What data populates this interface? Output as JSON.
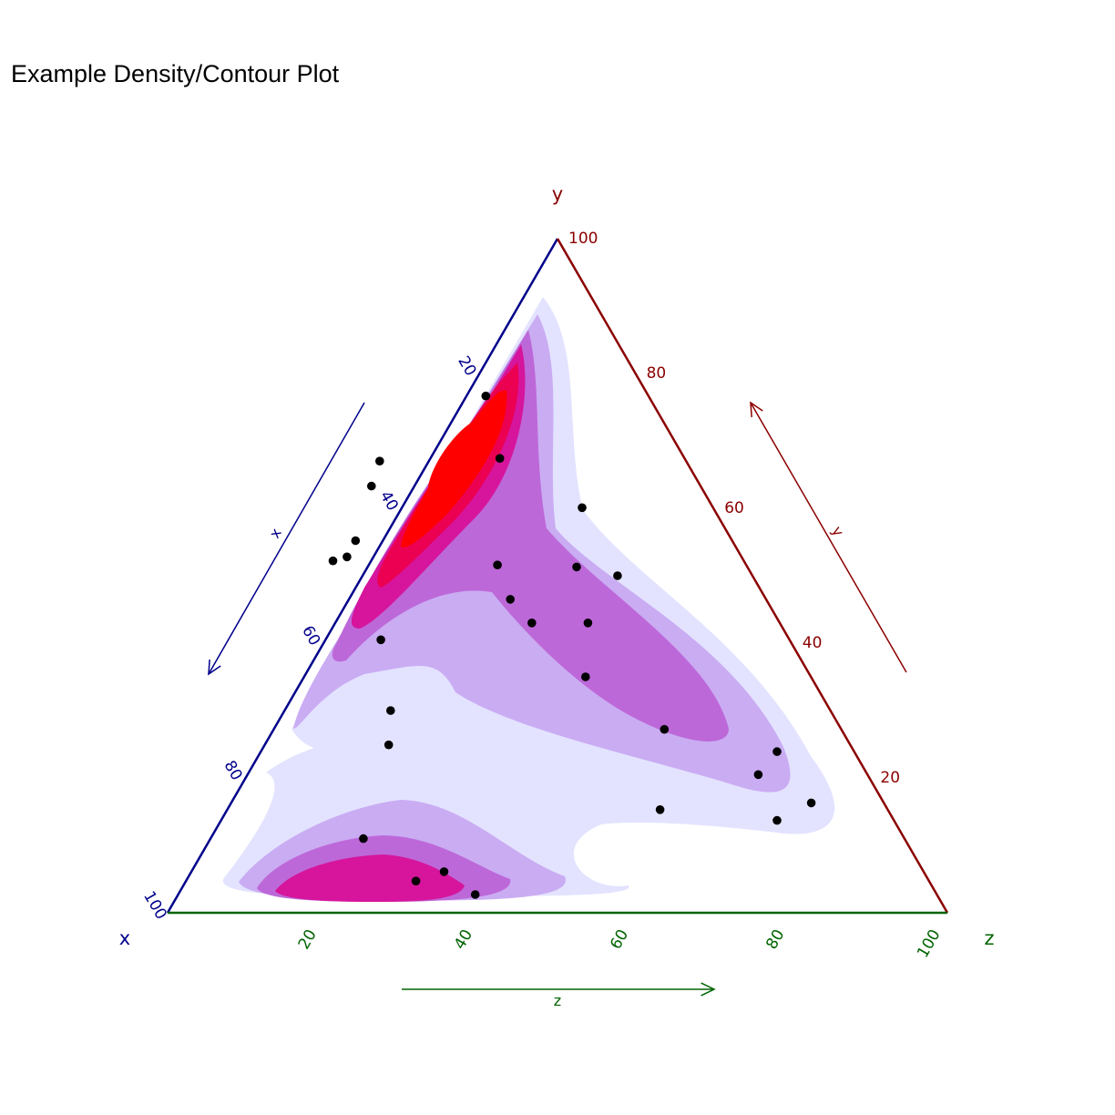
{
  "chart_data": {
    "type": "scatter",
    "subtype": "ternary-density-contour",
    "title": "Example Density/Contour Plot",
    "axes": {
      "x": {
        "name": "x",
        "color": "#00008B",
        "arrow_label": "x",
        "ticks": [
          "20",
          "40",
          "60",
          "80",
          "100"
        ]
      },
      "y": {
        "name": "y",
        "color": "#8B0000",
        "arrow_label": "y",
        "ticks": [
          "20",
          "40",
          "60",
          "80",
          "100"
        ]
      },
      "z": {
        "name": "z",
        "color": "#006400",
        "arrow_label": "z",
        "ticks": [
          "20",
          "40",
          "60",
          "80",
          "100"
        ]
      }
    },
    "tick_values": [
      20,
      40,
      60,
      80,
      100
    ],
    "contour_colors": [
      "#E3E3FF",
      "#CAACF3",
      "#BD68D8",
      "#D6159C",
      "#EB0052",
      "#FF0000"
    ],
    "points": [
      {
        "x": 21.9,
        "y": 80.5,
        "z": 2.6
      },
      {
        "x": 23.7,
        "y": 67.4,
        "z": 8.9
      },
      {
        "x": 16.8,
        "y": 60.1,
        "z": 23.1
      },
      {
        "x": 39.3,
        "y": 67.0,
        "z": -6.3
      },
      {
        "x": 42.2,
        "y": 63.3,
        "z": -5.5
      },
      {
        "x": 50.6,
        "y": 52.8,
        "z": -3.4
      },
      {
        "x": 52.7,
        "y": 52.2,
        "z": -4.9
      },
      {
        "x": 48.3,
        "y": 55.2,
        "z": -3.5
      },
      {
        "x": 31.9,
        "y": 51.6,
        "z": 16.5
      },
      {
        "x": 21.9,
        "y": 51.3,
        "z": 26.8
      },
      {
        "x": 17.3,
        "y": 50.0,
        "z": 32.7
      },
      {
        "x": 32.8,
        "y": 46.5,
        "z": 20.7
      },
      {
        "x": 31.8,
        "y": 43.0,
        "z": 25.2
      },
      {
        "x": 24.6,
        "y": 43.0,
        "z": 32.4
      },
      {
        "x": 52.4,
        "y": 40.5,
        "z": 7.1
      },
      {
        "x": 28.9,
        "y": 35.0,
        "z": 36.1
      },
      {
        "x": 22.7,
        "y": 27.2,
        "z": 50.1
      },
      {
        "x": 56.4,
        "y": 30.0,
        "z": 13.6
      },
      {
        "x": 59.2,
        "y": 24.9,
        "z": 15.9
      },
      {
        "x": 14.0,
        "y": 20.5,
        "z": 65.5
      },
      {
        "x": 9.9,
        "y": 23.9,
        "z": 66.2
      },
      {
        "x": 9.3,
        "y": 16.3,
        "z": 74.4
      },
      {
        "x": 15.0,
        "y": 13.7,
        "z": 71.3
      },
      {
        "x": 29.2,
        "y": 15.3,
        "z": 55.5
      },
      {
        "x": 69.4,
        "y": 11.0,
        "z": 19.6
      },
      {
        "x": 61.5,
        "y": 6.1,
        "z": 32.4
      },
      {
        "x": 65.8,
        "y": 4.7,
        "z": 29.5
      },
      {
        "x": 59.2,
        "y": 2.7,
        "z": 38.1
      }
    ]
  }
}
